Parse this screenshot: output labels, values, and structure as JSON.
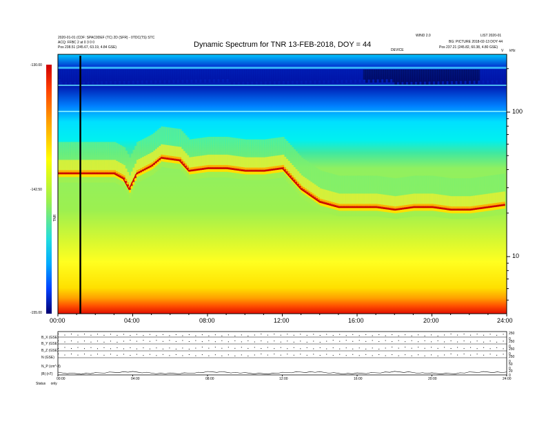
{
  "header": {
    "title": "Dynamic Spectrum for TNR 13-FEB-2018, DOY = 44",
    "left_line1": "2020-01-01 (CDF: SPAC0DEF (TC) 2D (SFR) - 0TDC(TS) STC",
    "left_line2": "ACQ: FFBC 2 at 0 3 0 0",
    "left_line3_label": "Pos",
    "left_line3_value": "238.51 (245.67, 63.19, 4.84 GSE)",
    "right_line0": "WIND 2.0",
    "right_line0b": "LIST 2020-01",
    "right_line1": "BG: PICTURE 2018-02-13 DOY 44",
    "right_line2_label": "Pos",
    "right_line2_value": "237.21 (245.82, 60.38, 4.80 GSE)",
    "center_small": "DEVICE",
    "corner_small": "kHz",
    "corner_v": "V"
  },
  "colorbar": {
    "label": "TNR",
    "ticks": [
      "-130.00",
      "-142.50",
      "-155.00"
    ],
    "colors": [
      "#d00000",
      "#ffff00",
      "#22dddd",
      "#0040ff",
      "#000070"
    ]
  },
  "chart_data": {
    "type": "heatmap",
    "title": "Dynamic Spectrum for TNR 13-FEB-2018, DOY = 44",
    "xlabel": "",
    "ylabel": "",
    "x_ticks": [
      "00:00",
      "04:00",
      "08:00",
      "12:00",
      "16:00",
      "20:00",
      "24:00"
    ],
    "x_range_hours": [
      0,
      24
    ],
    "y_scale": "log",
    "y_ticks": [
      "100",
      "10"
    ],
    "colorbar_ticks": [
      "-130.00",
      "-142.50",
      "-155.00"
    ],
    "colorbar_label": "TNR",
    "plasma_line_hours": [
      0,
      1,
      2,
      3,
      3.5,
      3.8,
      4.2,
      5.0,
      5.5,
      6.5,
      7.0,
      8.0,
      9.0,
      10.0,
      11.0,
      12.0,
      12.5,
      13.0,
      14.0,
      15.0,
      16.0,
      17.0,
      18.0,
      19.0,
      20.0,
      21.0,
      22.0,
      23.0,
      24.0
    ],
    "plasma_line_level": [
      0.46,
      0.46,
      0.46,
      0.46,
      0.48,
      0.52,
      0.46,
      0.43,
      0.4,
      0.41,
      0.45,
      0.44,
      0.44,
      0.45,
      0.45,
      0.44,
      0.48,
      0.52,
      0.57,
      0.59,
      0.59,
      0.59,
      0.6,
      0.59,
      0.59,
      0.6,
      0.6,
      0.59,
      0.58
    ],
    "marker_hour": 1.2
  },
  "lower_panel": {
    "row_labels": [
      "B_X (GSE)",
      "B_Y (GSE)",
      "B_Z (GSE)",
      "N (GSE)",
      "N_P (cm^-3)",
      "|B| (nT)"
    ],
    "right_labels": [
      "250",
      "0",
      "250",
      "0",
      "250",
      "0",
      "250",
      "0",
      "50",
      "0",
      "20",
      "0"
    ],
    "x_ticks": [
      "00:00",
      "04:00",
      "08:00",
      "12:00",
      "16:00",
      "20:00",
      "24:00"
    ],
    "status_label": "Status",
    "status_value": "only"
  }
}
